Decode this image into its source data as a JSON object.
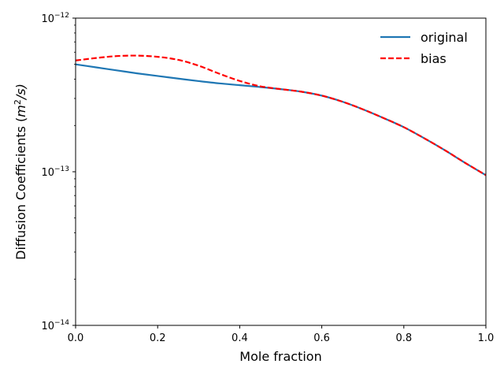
{
  "chart_data": {
    "type": "line",
    "title": "",
    "xlabel": "Mole fraction",
    "ylabel": "Diffusion Coefficients (m²/s)",
    "ylabel_base": "Diffusion Coefficients (",
    "ylabel_m": "m",
    "ylabel_exp": "2",
    "ylabel_rest": "/s)",
    "xscale": "linear",
    "yscale": "log",
    "xlim": [
      0.0,
      1.0
    ],
    "ylim": [
      1e-14,
      1e-12
    ],
    "xticks": [
      0.0,
      0.2,
      0.4,
      0.6,
      0.8,
      1.0
    ],
    "xtick_labels": [
      "0.0",
      "0.2",
      "0.4",
      "0.6",
      "0.8",
      "1.0"
    ],
    "yticks": [
      {
        "value": 1e-14,
        "base": "10",
        "exp": "−14"
      },
      {
        "value": 1e-13,
        "base": "10",
        "exp": "−13"
      },
      {
        "value": 1e-12,
        "base": "10",
        "exp": "−12"
      }
    ],
    "grid": false,
    "legend_position": "top-right",
    "series": [
      {
        "name": "original",
        "color": "#1f77b4",
        "style": "solid",
        "x": [
          0.0,
          0.05,
          0.1,
          0.15,
          0.2,
          0.25,
          0.3,
          0.35,
          0.4,
          0.45,
          0.5,
          0.55,
          0.6,
          0.65,
          0.7,
          0.75,
          0.8,
          0.85,
          0.9,
          0.95,
          1.0
        ],
        "y": [
          5e-13,
          4.78e-13,
          4.57e-13,
          4.37e-13,
          4.2e-13,
          4.04e-13,
          3.89e-13,
          3.76e-13,
          3.66e-13,
          3.56e-13,
          3.45e-13,
          3.32e-13,
          3.13e-13,
          2.86e-13,
          2.55e-13,
          2.24e-13,
          1.95e-13,
          1.65e-13,
          1.38e-13,
          1.14e-13,
          9.5e-14
        ]
      },
      {
        "name": "bias",
        "color": "#ff0000",
        "style": "dashed",
        "x": [
          0.0,
          0.05,
          0.1,
          0.15,
          0.2,
          0.25,
          0.3,
          0.35,
          0.4,
          0.45,
          0.5,
          0.55,
          0.6,
          0.65,
          0.7,
          0.75,
          0.8,
          0.85,
          0.9,
          0.95,
          1.0
        ],
        "y": [
          5.3e-13,
          5.5e-13,
          5.66e-13,
          5.7e-13,
          5.6e-13,
          5.35e-13,
          4.9e-13,
          4.35e-13,
          3.9e-13,
          3.6e-13,
          3.45e-13,
          3.32e-13,
          3.13e-13,
          2.86e-13,
          2.55e-13,
          2.24e-13,
          1.95e-13,
          1.65e-13,
          1.38e-13,
          1.14e-13,
          9.5e-14
        ]
      }
    ]
  }
}
